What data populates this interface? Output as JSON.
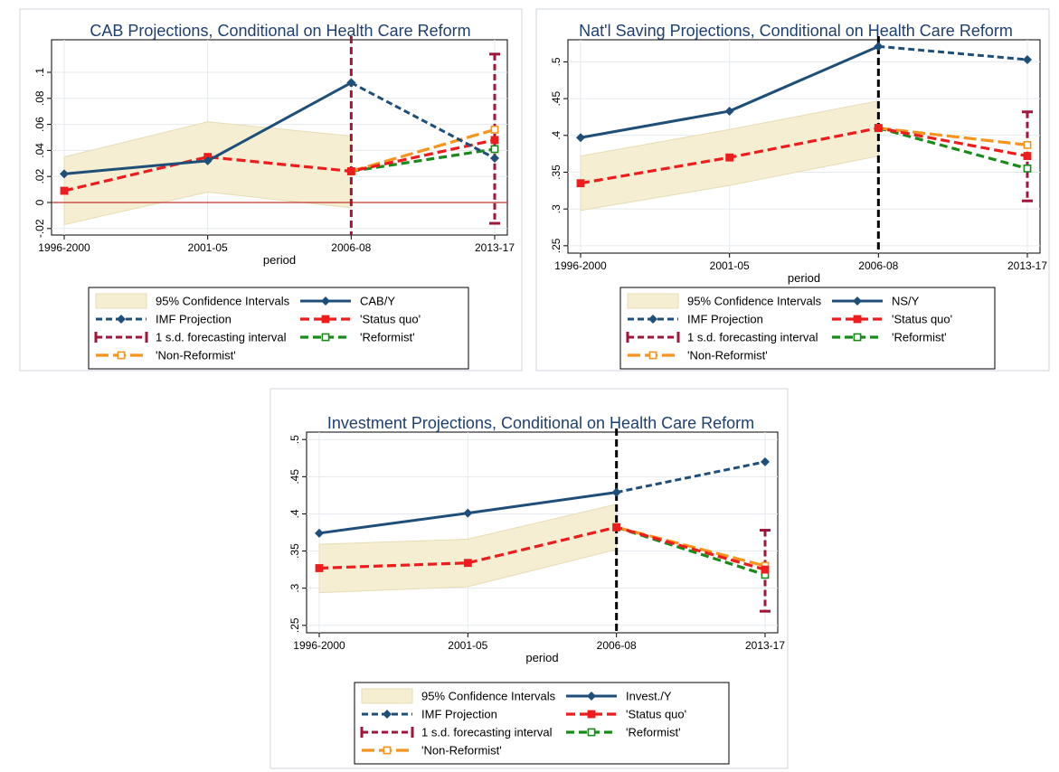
{
  "chart_data": [
    {
      "type": "line",
      "title": "CAB Projections, Conditional on Health Care Reform",
      "xlabel": "period",
      "ylabel": "",
      "categories": [
        "1996-2000",
        "2001-05",
        "2006-08",
        "2013-17"
      ],
      "ylim": [
        -0.025,
        0.125
      ],
      "yticks": [
        -0.02,
        0,
        0.02,
        0.04,
        0.06,
        0.08,
        0.1
      ],
      "ytick_labels": [
        "-.02",
        "0",
        ".02",
        ".04",
        ".06",
        ".08",
        ".1"
      ],
      "reference_line_y": 0,
      "divider": {
        "at": "2006-08",
        "color": "#a0163a"
      },
      "confidence_band": {
        "lower": [
          -0.017,
          0.008,
          -0.004
        ],
        "upper": [
          0.035,
          0.062,
          0.051
        ]
      },
      "forecast_interval": {
        "at": "2013-17",
        "low": -0.016,
        "high": 0.114
      },
      "series": [
        {
          "name": "CAB/Y",
          "role": "actual",
          "values": [
            0.022,
            0.032,
            0.092,
            null
          ]
        },
        {
          "name": "IMF Projection",
          "role": "imf",
          "values": [
            null,
            null,
            0.092,
            0.034
          ]
        },
        {
          "name": "'Status quo'",
          "role": "status",
          "values": [
            0.009,
            0.035,
            0.024,
            0.048
          ]
        },
        {
          "name": "'Reformist'",
          "role": "reform",
          "values": [
            null,
            null,
            0.024,
            0.041
          ]
        },
        {
          "name": "'Non-Reformist'",
          "role": "nonreform",
          "values": [
            null,
            null,
            0.024,
            0.056
          ]
        }
      ],
      "legend": {
        "ci": "95% Confidence Intervals",
        "actual": "CAB/Y",
        "imf": "IMF Projection",
        "status": "'Status quo'",
        "fi": "1 s.d. forecasting interval",
        "reform": "'Reformist'",
        "nonreform": "'Non-Reformist'"
      }
    },
    {
      "type": "line",
      "title": "Nat'l Saving Projections, Conditional on Health Care Reform",
      "xlabel": "period",
      "ylabel": "",
      "categories": [
        "1996-2000",
        "2001-05",
        "2006-08",
        "2013-17"
      ],
      "ylim": [
        0.24,
        0.53
      ],
      "yticks": [
        0.25,
        0.3,
        0.35,
        0.4,
        0.45,
        0.5
      ],
      "ytick_labels": [
        ".25",
        ".3",
        ".35",
        ".4",
        ".45",
        ".5"
      ],
      "divider": {
        "at": "2006-08",
        "color": "#000000"
      },
      "confidence_band": {
        "lower": [
          0.298,
          0.332,
          0.372
        ],
        "upper": [
          0.372,
          0.408,
          0.447
        ]
      },
      "forecast_interval": {
        "at": "2013-17",
        "low": 0.311,
        "high": 0.432
      },
      "series": [
        {
          "name": "NS/Y",
          "role": "actual",
          "values": [
            0.397,
            0.433,
            0.521,
            null
          ]
        },
        {
          "name": "IMF Projection",
          "role": "imf",
          "values": [
            null,
            null,
            0.521,
            0.503
          ]
        },
        {
          "name": "'Status quo'",
          "role": "status",
          "values": [
            0.335,
            0.37,
            0.41,
            0.372
          ]
        },
        {
          "name": "'Reformist'",
          "role": "reform",
          "values": [
            null,
            null,
            0.41,
            0.355
          ]
        },
        {
          "name": "'Non-Reformist'",
          "role": "nonreform",
          "values": [
            null,
            null,
            0.41,
            0.387
          ]
        }
      ],
      "legend": {
        "ci": "95% Confidence Intervals",
        "actual": "NS/Y",
        "imf": "IMF Projection",
        "status": "'Status quo'",
        "fi": "1 s.d. forecasting interval",
        "reform": "'Reformist'",
        "nonreform": "'Non-Reformist'"
      }
    },
    {
      "type": "line",
      "title": "Investment Projections, Conditional on Health Care Reform",
      "xlabel": "period",
      "ylabel": "",
      "categories": [
        "1996-2000",
        "2001-05",
        "2006-08",
        "2013-17"
      ],
      "ylim": [
        0.24,
        0.51
      ],
      "yticks": [
        0.25,
        0.3,
        0.35,
        0.4,
        0.45,
        0.5
      ],
      "ytick_labels": [
        ".25",
        ".3",
        ".35",
        ".4",
        ".45",
        ".5"
      ],
      "divider": {
        "at": "2006-08",
        "color": "#000000"
      },
      "confidence_band": {
        "lower": [
          0.294,
          0.302,
          0.352
        ],
        "upper": [
          0.359,
          0.366,
          0.413
        ]
      },
      "forecast_interval": {
        "at": "2013-17",
        "low": 0.269,
        "high": 0.378
      },
      "series": [
        {
          "name": "Invest./Y",
          "role": "actual",
          "values": [
            0.374,
            0.401,
            0.429,
            null
          ]
        },
        {
          "name": "IMF Projection",
          "role": "imf",
          "values": [
            null,
            null,
            0.429,
            0.47
          ]
        },
        {
          "name": "'Status quo'",
          "role": "status",
          "values": [
            0.327,
            0.334,
            0.382,
            0.325
          ]
        },
        {
          "name": "'Reformist'",
          "role": "reform",
          "values": [
            null,
            null,
            0.382,
            0.318
          ]
        },
        {
          "name": "'Non-Reformist'",
          "role": "nonreform",
          "values": [
            null,
            null,
            0.382,
            0.33
          ]
        }
      ],
      "legend": {
        "ci": "95% Confidence Intervals",
        "actual": "Invest./Y",
        "imf": "IMF Projection",
        "status": "'Status quo'",
        "fi": "1 s.d. forecasting interval",
        "reform": "'Reformist'",
        "nonreform": "'Non-Reformist'"
      }
    }
  ],
  "colors": {
    "actual": "#1f4e79",
    "status": "#ee1c1c",
    "reform": "#1a8a1a",
    "nonreform": "#f7941d",
    "band_fill": "#f5eed2",
    "band_edge": "#e6dcb5",
    "forecast": "#a0163a",
    "zero_line": "#c0392b",
    "grid": "#e4eaef",
    "frame": "#cfd6dc"
  }
}
